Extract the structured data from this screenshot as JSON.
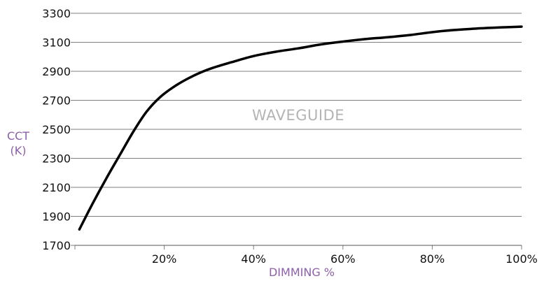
{
  "chart_data": {
    "type": "line",
    "title": "",
    "xlabel": "DIMMING %",
    "ylabel_lines": [
      "CCT",
      "(K)"
    ],
    "annotation": "WAVEGUIDE",
    "xlim": [
      0,
      100
    ],
    "ylim": [
      1700,
      3300
    ],
    "y_ticks": [
      1700,
      1900,
      2100,
      2300,
      2500,
      2700,
      2900,
      3100,
      3300
    ],
    "x_ticks": [
      20,
      40,
      60,
      80,
      100
    ],
    "x_tick_labels": [
      "20%",
      "40%",
      "60%",
      "80%",
      "100%"
    ],
    "grid": true,
    "colors": {
      "line": "#000000",
      "grid": "#7f7f7f",
      "axis_title": "#8e5fa8",
      "annotation": "#b4b4b4"
    },
    "series": [
      {
        "x": [
          1,
          4,
          7,
          10,
          13,
          16,
          19,
          22,
          25,
          28,
          31,
          35,
          40,
          45,
          50,
          55,
          60,
          65,
          70,
          75,
          80,
          85,
          90,
          95,
          100
        ],
        "y": [
          1810,
          1990,
          2160,
          2320,
          2480,
          2620,
          2720,
          2790,
          2845,
          2890,
          2925,
          2962,
          3005,
          3035,
          3058,
          3085,
          3105,
          3122,
          3135,
          3150,
          3170,
          3185,
          3195,
          3202,
          3208
        ]
      }
    ]
  }
}
